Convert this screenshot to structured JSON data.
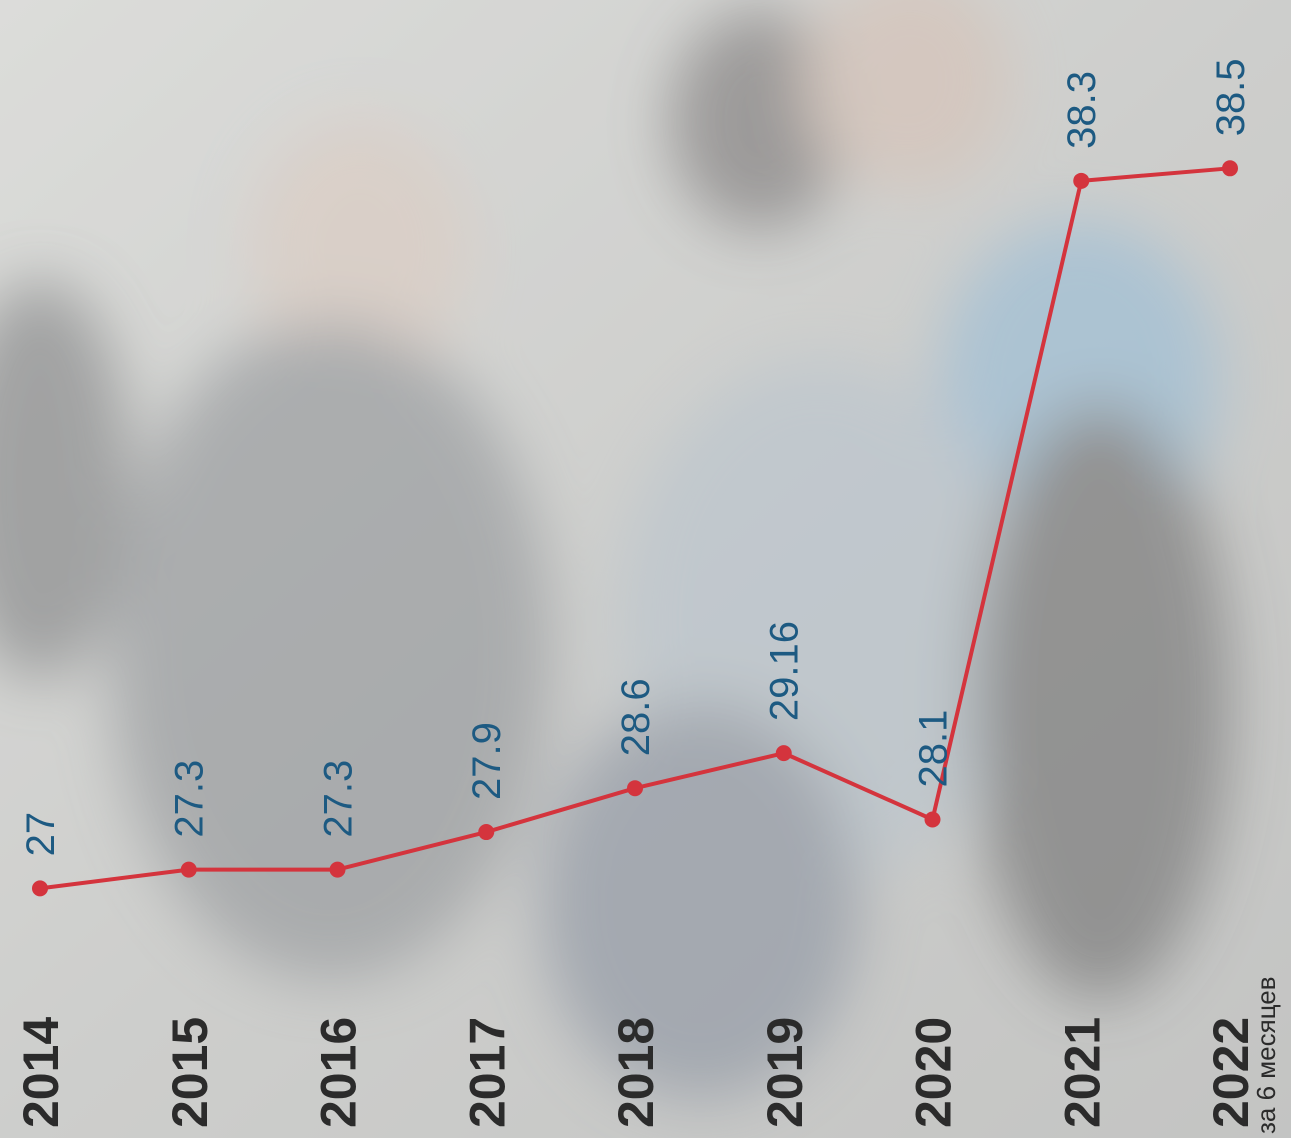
{
  "chart_data": {
    "type": "line",
    "categories": [
      "2014",
      "2015",
      "2016",
      "2017",
      "2018",
      "2019",
      "2020",
      "2021",
      "2022"
    ],
    "values": [
      27,
      27.3,
      27.3,
      27.9,
      28.6,
      29.16,
      28.1,
      38.3,
      38.5
    ],
    "color": "#d4343d",
    "ylim": [
      26,
      39
    ],
    "annotation": "за 6 месяцев"
  }
}
